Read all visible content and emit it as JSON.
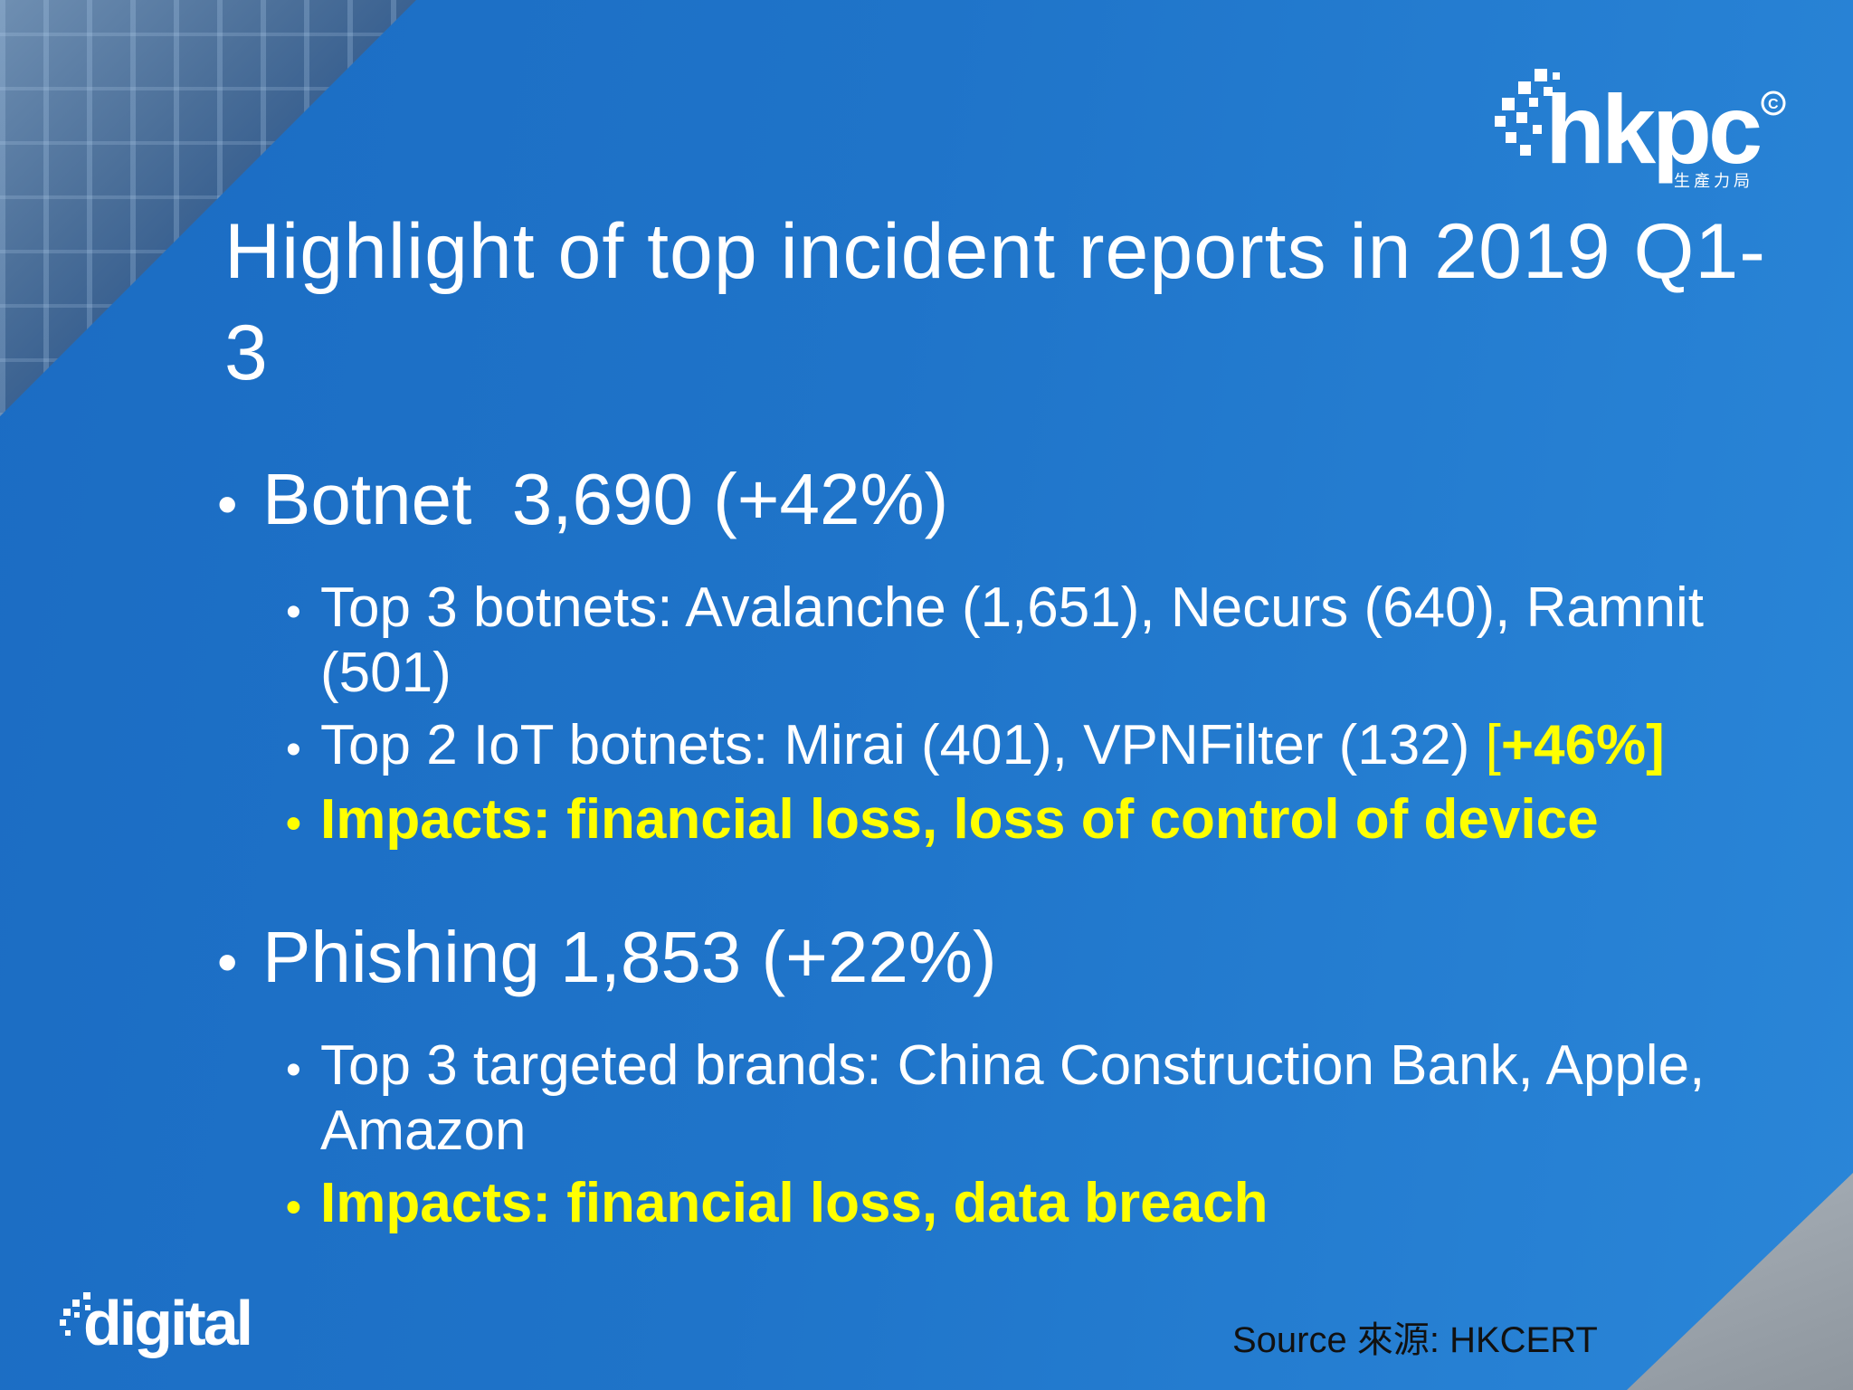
{
  "slide": {
    "title": "Highlight of top incident reports in 2019 Q1-3",
    "sections": [
      {
        "heading": "Botnet  3,690 (+42%)",
        "items": [
          {
            "text": "Top 3 botnets: Avalanche (1,651), Necurs (640), Ramnit (501)"
          },
          {
            "text": "Top 2 IoT botnets: Mirai (401), VPNFilter (132) ",
            "highlight_open": "[",
            "highlight": "+46%",
            "highlight_close": "]"
          },
          {
            "text": "Impacts: financial loss, loss of control of device"
          }
        ]
      },
      {
        "heading": "Phishing 1,853 (+22%)",
        "items": [
          {
            "text": "Top 3 targeted brands: China Construction Bank, Apple, Amazon"
          },
          {
            "text": "Impacts: financial loss, data breach"
          }
        ]
      }
    ],
    "source": "Source 來源: HKCERT"
  },
  "logos": {
    "top_right": "hkpc",
    "top_right_sub": "生產力局",
    "bottom_left": "digital"
  },
  "colors": {
    "background": "#1f74c9",
    "text": "#ffffff",
    "highlight": "#ffff00",
    "source_text": "#111111"
  },
  "icons": {
    "bullet": "bullet-dot",
    "logo_mark": "pixel-burst-icon"
  }
}
